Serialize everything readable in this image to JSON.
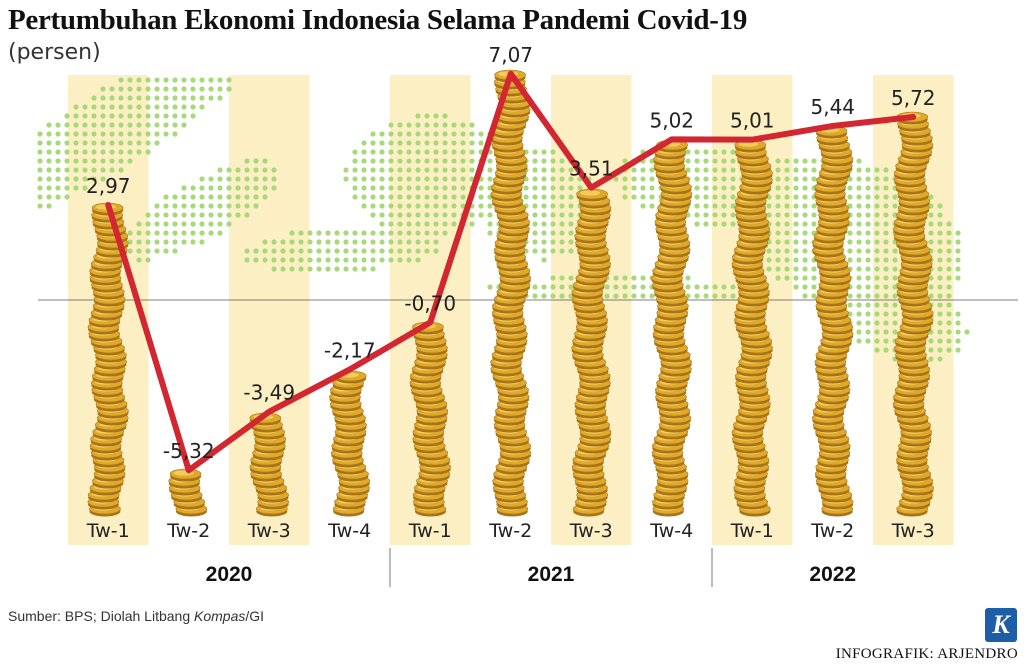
{
  "header": {
    "title": "Pertumbuhan Ekonomi Indonesia Selama Pandemi Covid-19",
    "subtitle": "(persen)"
  },
  "footer": {
    "source_prefix": "Sumber: BPS; Diolah Litbang ",
    "source_italic": "Kompas",
    "source_suffix": "/GI",
    "credit": "INFOGRAFIK: ARJENDRO",
    "logo_letter": "K"
  },
  "chart_data": {
    "type": "line",
    "title": "Pertumbuhan Ekonomi Indonesia Selama Pandemi Covid-19",
    "subtitle": "(persen)",
    "categories": [
      "Tw-1",
      "Tw-2",
      "Tw-3",
      "Tw-4",
      "Tw-1",
      "Tw-2",
      "Tw-3",
      "Tw-4",
      "Tw-1",
      "Tw-2",
      "Tw-3"
    ],
    "groups": [
      {
        "label": "2020",
        "count": 4
      },
      {
        "label": "2021",
        "count": 4
      },
      {
        "label": "2022",
        "count": 3
      }
    ],
    "series": [
      {
        "values": [
          2.97,
          -5.32,
          -3.49,
          -2.17,
          -0.7,
          7.07,
          3.51,
          5.02,
          5.01,
          5.44,
          5.72
        ]
      }
    ],
    "data_labels": [
      "2,97",
      "-5,32",
      "-3,49",
      "-2,17",
      "-0,70",
      "7,07",
      "3,51",
      "5,02",
      "5,01",
      "5,44",
      "5,72"
    ],
    "ylim": [
      -7.5,
      7.5
    ],
    "grid": false,
    "zero_line": true,
    "colors": {
      "line": "#d22630",
      "coin": "#e0a92a",
      "coin_light": "#f6d46a",
      "coin_dark": "#a8741a",
      "band": "#fcefc3",
      "map_dots": "#a8d978"
    }
  }
}
